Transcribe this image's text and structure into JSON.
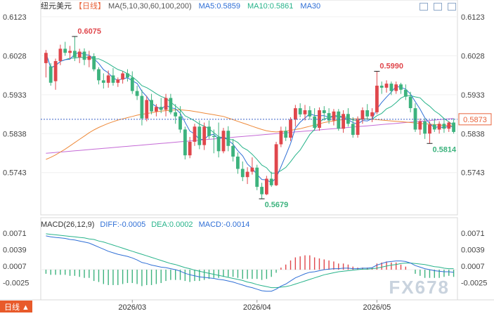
{
  "header": {
    "pair": "纽元美元",
    "period": "【日线】",
    "ma_label": "MA(5,10,30,60,100,200)",
    "ma5": "MA5:0.5859",
    "ma10": "MA10:0.5861",
    "ma30": "MA30"
  },
  "macd_header": {
    "title": "MACD(26,12,9)",
    "diff": "DIFF:-0.0005",
    "dea": "DEA:0.0002",
    "macd": "MACD:-0.0014"
  },
  "watermark": "FX678",
  "badge": "日线",
  "colors": {
    "up": "#e0474c",
    "down": "#3db37e",
    "ma5": "#2f6fd6",
    "ma10": "#27b38a",
    "ma30": "#ee8a3a",
    "ma60": "#c56ad6",
    "diff": "#2f6fd6",
    "dea": "#27b38a"
  },
  "chart_data": [
    {
      "type": "candlestick",
      "title": "纽元美元 日线",
      "y_ticks": [
        "0.6123",
        "0.6028",
        "0.5933",
        "0.5838",
        "0.5743"
      ],
      "ylim": [
        0.565,
        0.614
      ],
      "x_ticks": [
        "2026/03",
        "2026/04",
        "2026/05"
      ],
      "current_price": "0.5873",
      "annotations": [
        {
          "label": "0.6075",
          "value": 0.6075,
          "kind": "high"
        },
        {
          "label": "0.5990",
          "value": 0.599,
          "kind": "high"
        },
        {
          "label": "0.5679",
          "value": 0.5679,
          "kind": "low"
        },
        {
          "label": "0.5814",
          "value": 0.5814,
          "kind": "low"
        }
      ],
      "candles": [
        {
          "o": 0.601,
          "h": 0.6042,
          "l": 0.5975,
          "c": 0.6035
        },
        {
          "o": 0.6002,
          "h": 0.601,
          "l": 0.5955,
          "c": 0.5962
        },
        {
          "o": 0.5966,
          "h": 0.6021,
          "l": 0.5945,
          "c": 0.6015
        },
        {
          "o": 0.6015,
          "h": 0.6055,
          "l": 0.6005,
          "c": 0.6045
        },
        {
          "o": 0.6045,
          "h": 0.6062,
          "l": 0.6028,
          "c": 0.6035
        },
        {
          "o": 0.6035,
          "h": 0.6052,
          "l": 0.602,
          "c": 0.604
        },
        {
          "o": 0.604,
          "h": 0.6075,
          "l": 0.6015,
          "c": 0.6024
        },
        {
          "o": 0.6024,
          "h": 0.6045,
          "l": 0.601,
          "c": 0.6038
        },
        {
          "o": 0.6038,
          "h": 0.6046,
          "l": 0.6005,
          "c": 0.6018
        },
        {
          "o": 0.6018,
          "h": 0.604,
          "l": 0.6,
          "c": 0.6027
        },
        {
          "o": 0.6027,
          "h": 0.6034,
          "l": 0.599,
          "c": 0.5995
        },
        {
          "o": 0.5995,
          "h": 0.6,
          "l": 0.5958,
          "c": 0.5968
        },
        {
          "o": 0.5968,
          "h": 0.5985,
          "l": 0.5948,
          "c": 0.5962
        },
        {
          "o": 0.5962,
          "h": 0.5992,
          "l": 0.595,
          "c": 0.598
        },
        {
          "o": 0.598,
          "h": 0.5998,
          "l": 0.5955,
          "c": 0.5962
        },
        {
          "o": 0.5962,
          "h": 0.5975,
          "l": 0.5952,
          "c": 0.597
        },
        {
          "o": 0.597,
          "h": 0.599,
          "l": 0.596,
          "c": 0.5985
        },
        {
          "o": 0.5985,
          "h": 0.5995,
          "l": 0.5965,
          "c": 0.5975
        },
        {
          "o": 0.5975,
          "h": 0.599,
          "l": 0.5935,
          "c": 0.5942
        },
        {
          "o": 0.5942,
          "h": 0.5955,
          "l": 0.592,
          "c": 0.593
        },
        {
          "o": 0.593,
          "h": 0.5945,
          "l": 0.5858,
          "c": 0.5875
        },
        {
          "o": 0.5875,
          "h": 0.593,
          "l": 0.5868,
          "c": 0.592
        },
        {
          "o": 0.592,
          "h": 0.5935,
          "l": 0.5885,
          "c": 0.5892
        },
        {
          "o": 0.5892,
          "h": 0.591,
          "l": 0.588,
          "c": 0.5903
        },
        {
          "o": 0.5903,
          "h": 0.5925,
          "l": 0.5888,
          "c": 0.5896
        },
        {
          "o": 0.5896,
          "h": 0.5935,
          "l": 0.588,
          "c": 0.5925
        },
        {
          "o": 0.5925,
          "h": 0.5935,
          "l": 0.5885,
          "c": 0.589
        },
        {
          "o": 0.589,
          "h": 0.591,
          "l": 0.5862,
          "c": 0.588
        },
        {
          "o": 0.588,
          "h": 0.5905,
          "l": 0.584,
          "c": 0.5848
        },
        {
          "o": 0.5848,
          "h": 0.5855,
          "l": 0.5775,
          "c": 0.5785
        },
        {
          "o": 0.5785,
          "h": 0.583,
          "l": 0.5778,
          "c": 0.5818
        },
        {
          "o": 0.5818,
          "h": 0.5862,
          "l": 0.5808,
          "c": 0.5855
        },
        {
          "o": 0.5855,
          "h": 0.587,
          "l": 0.58,
          "c": 0.581
        },
        {
          "o": 0.581,
          "h": 0.5865,
          "l": 0.5798,
          "c": 0.5855
        },
        {
          "o": 0.5855,
          "h": 0.587,
          "l": 0.5825,
          "c": 0.5832
        },
        {
          "o": 0.5832,
          "h": 0.5848,
          "l": 0.579,
          "c": 0.583
        },
        {
          "o": 0.583,
          "h": 0.5865,
          "l": 0.578,
          "c": 0.5795
        },
        {
          "o": 0.5795,
          "h": 0.5852,
          "l": 0.579,
          "c": 0.5845
        },
        {
          "o": 0.5845,
          "h": 0.5856,
          "l": 0.5795,
          "c": 0.5808
        },
        {
          "o": 0.5808,
          "h": 0.5825,
          "l": 0.577,
          "c": 0.5782
        },
        {
          "o": 0.5782,
          "h": 0.5792,
          "l": 0.574,
          "c": 0.5752
        },
        {
          "o": 0.5752,
          "h": 0.577,
          "l": 0.5722,
          "c": 0.5732
        },
        {
          "o": 0.5732,
          "h": 0.5756,
          "l": 0.5715,
          "c": 0.5745
        },
        {
          "o": 0.5745,
          "h": 0.578,
          "l": 0.5738,
          "c": 0.5755
        },
        {
          "o": 0.5755,
          "h": 0.5762,
          "l": 0.57,
          "c": 0.5708
        },
        {
          "o": 0.5708,
          "h": 0.5718,
          "l": 0.5679,
          "c": 0.569
        },
        {
          "o": 0.569,
          "h": 0.5735,
          "l": 0.5688,
          "c": 0.5728
        },
        {
          "o": 0.5728,
          "h": 0.5745,
          "l": 0.5708,
          "c": 0.5712
        },
        {
          "o": 0.5712,
          "h": 0.5818,
          "l": 0.571,
          "c": 0.5812
        },
        {
          "o": 0.5812,
          "h": 0.5855,
          "l": 0.5805,
          "c": 0.5845
        },
        {
          "o": 0.5845,
          "h": 0.5855,
          "l": 0.582,
          "c": 0.5828
        },
        {
          "o": 0.5828,
          "h": 0.5878,
          "l": 0.582,
          "c": 0.5872
        },
        {
          "o": 0.5872,
          "h": 0.5908,
          "l": 0.5855,
          "c": 0.59
        },
        {
          "o": 0.59,
          "h": 0.5912,
          "l": 0.5878,
          "c": 0.5885
        },
        {
          "o": 0.5885,
          "h": 0.5908,
          "l": 0.587,
          "c": 0.5895
        },
        {
          "o": 0.5895,
          "h": 0.5905,
          "l": 0.5872,
          "c": 0.588
        },
        {
          "o": 0.588,
          "h": 0.59,
          "l": 0.5845,
          "c": 0.5852
        },
        {
          "o": 0.5852,
          "h": 0.5902,
          "l": 0.5845,
          "c": 0.5895
        },
        {
          "o": 0.5895,
          "h": 0.5905,
          "l": 0.587,
          "c": 0.5888
        },
        {
          "o": 0.5888,
          "h": 0.59,
          "l": 0.5862,
          "c": 0.587
        },
        {
          "o": 0.587,
          "h": 0.5898,
          "l": 0.5858,
          "c": 0.5892
        },
        {
          "o": 0.5892,
          "h": 0.5898,
          "l": 0.5845,
          "c": 0.585
        },
        {
          "o": 0.585,
          "h": 0.5895,
          "l": 0.584,
          "c": 0.5886
        },
        {
          "o": 0.5886,
          "h": 0.59,
          "l": 0.5855,
          "c": 0.5862
        },
        {
          "o": 0.5862,
          "h": 0.5878,
          "l": 0.5828,
          "c": 0.5835
        },
        {
          "o": 0.5835,
          "h": 0.588,
          "l": 0.5828,
          "c": 0.5872
        },
        {
          "o": 0.5872,
          "h": 0.5902,
          "l": 0.5862,
          "c": 0.5895
        },
        {
          "o": 0.5895,
          "h": 0.591,
          "l": 0.5872,
          "c": 0.588
        },
        {
          "o": 0.588,
          "h": 0.59,
          "l": 0.5866,
          "c": 0.589
        },
        {
          "o": 0.589,
          "h": 0.599,
          "l": 0.5885,
          "c": 0.5955
        },
        {
          "o": 0.5955,
          "h": 0.5965,
          "l": 0.5935,
          "c": 0.595
        },
        {
          "o": 0.595,
          "h": 0.5968,
          "l": 0.5938,
          "c": 0.596
        },
        {
          "o": 0.596,
          "h": 0.5965,
          "l": 0.5932,
          "c": 0.5942
        },
        {
          "o": 0.5942,
          "h": 0.5965,
          "l": 0.5935,
          "c": 0.5958
        },
        {
          "o": 0.5958,
          "h": 0.5962,
          "l": 0.5935,
          "c": 0.5945
        },
        {
          "o": 0.5945,
          "h": 0.5958,
          "l": 0.592,
          "c": 0.5928
        },
        {
          "o": 0.5928,
          "h": 0.594,
          "l": 0.589,
          "c": 0.59
        },
        {
          "o": 0.59,
          "h": 0.5912,
          "l": 0.5842,
          "c": 0.5848
        },
        {
          "o": 0.5848,
          "h": 0.5875,
          "l": 0.5835,
          "c": 0.5868
        },
        {
          "o": 0.5868,
          "h": 0.5875,
          "l": 0.5825,
          "c": 0.5838
        },
        {
          "o": 0.5838,
          "h": 0.5868,
          "l": 0.5814,
          "c": 0.586
        },
        {
          "o": 0.586,
          "h": 0.5875,
          "l": 0.5842,
          "c": 0.5848
        },
        {
          "o": 0.5848,
          "h": 0.5868,
          "l": 0.5838,
          "c": 0.5862
        },
        {
          "o": 0.5862,
          "h": 0.5872,
          "l": 0.584,
          "c": 0.585
        },
        {
          "o": 0.585,
          "h": 0.5868,
          "l": 0.5842,
          "c": 0.5865
        },
        {
          "o": 0.5865,
          "h": 0.5875,
          "l": 0.5838,
          "c": 0.5842
        }
      ],
      "ma30": [
        0.5775,
        0.578,
        0.5786,
        0.5793,
        0.58,
        0.5808,
        0.5816,
        0.5824,
        0.5832,
        0.584,
        0.5847,
        0.5853,
        0.5858,
        0.5863,
        0.5867,
        0.5871,
        0.5874,
        0.5877,
        0.588,
        0.5883,
        0.5885,
        0.5887,
        0.5889,
        0.5891,
        0.5893,
        0.5894,
        0.5895,
        0.5896,
        0.5896,
        0.5895,
        0.5894,
        0.5892,
        0.589,
        0.5888,
        0.5886,
        0.5884,
        0.5882,
        0.588,
        0.5876,
        0.5872,
        0.5868,
        0.5864,
        0.586,
        0.5856,
        0.5852,
        0.5848,
        0.5845,
        0.5843,
        0.5842,
        0.5843,
        0.5844,
        0.5846,
        0.5848,
        0.585,
        0.5853,
        0.5856,
        0.5859,
        0.5862,
        0.5865,
        0.5867,
        0.5869,
        0.5871,
        0.5872,
        0.5873,
        0.5874,
        0.5874,
        0.5874,
        0.5874,
        0.5873,
        0.5872,
        0.5871,
        0.587,
        0.5869,
        0.5868,
        0.5867,
        0.5866,
        0.5865,
        0.5864,
        0.5863,
        0.5862,
        0.5861,
        0.586,
        0.5859,
        0.5858,
        0.5858,
        0.5857
      ],
      "ma60": [
        0.579,
        0.5791,
        0.5792,
        0.5793,
        0.5794,
        0.5795,
        0.5796,
        0.5797,
        0.5798,
        0.5799,
        0.58,
        0.5801,
        0.5802,
        0.5803,
        0.5804,
        0.5805,
        0.5806,
        0.5807,
        0.5808,
        0.5809,
        0.581,
        0.5811,
        0.5812,
        0.5813,
        0.5814,
        0.5815,
        0.5816,
        0.5817,
        0.5818,
        0.5819,
        0.582,
        0.5821,
        0.5822,
        0.5823,
        0.5824,
        0.5825,
        0.5826,
        0.5827,
        0.5828,
        0.5829,
        0.583,
        0.5831,
        0.5832,
        0.5833,
        0.5834,
        0.5835,
        0.5836,
        0.5837,
        0.5838,
        0.5839,
        0.584,
        0.5841,
        0.5842,
        0.5843,
        0.5844,
        0.5845,
        0.5846,
        0.5847,
        0.5848,
        0.5849,
        0.585,
        0.5851,
        0.5852,
        0.5853,
        0.5854,
        0.5855,
        0.5856,
        0.5857,
        0.5858,
        0.5859,
        0.586,
        0.5861,
        0.5862,
        0.5863,
        0.5864,
        0.5865,
        0.5866,
        0.5867,
        0.5868,
        0.5869,
        0.587,
        0.5871,
        0.5872,
        0.5873,
        0.5874,
        0.5875
      ]
    },
    {
      "type": "macd",
      "title": "MACD(26,12,9)",
      "y_ticks": [
        "0.0071",
        "0.0039",
        "0.0007",
        "-0.0025"
      ],
      "ylim": [
        -0.0052,
        0.0085
      ],
      "diff": [
        0.0066,
        0.0064,
        0.0063,
        0.0062,
        0.0061,
        0.0059,
        0.0058,
        0.0056,
        0.0054,
        0.0052,
        0.0048,
        0.0044,
        0.004,
        0.0036,
        0.0033,
        0.003,
        0.0028,
        0.0026,
        0.0023,
        0.0019,
        0.0014,
        0.0012,
        0.0009,
        0.0007,
        0.0005,
        0.0004,
        0.0002,
        0.0,
        -0.0003,
        -0.0007,
        -0.001,
        -0.0012,
        -0.0014,
        -0.0015,
        -0.0016,
        -0.0017,
        -0.0019,
        -0.002,
        -0.0022,
        -0.0024,
        -0.0027,
        -0.003,
        -0.0033,
        -0.0035,
        -0.0038,
        -0.0041,
        -0.0042,
        -0.0042,
        -0.0038,
        -0.0032,
        -0.0028,
        -0.0022,
        -0.0016,
        -0.0012,
        -0.0008,
        -0.0005,
        -0.0004,
        -0.0002,
        0.0,
        0.0001,
        0.0002,
        0.0002,
        0.0003,
        0.0003,
        0.0002,
        0.0002,
        0.0003,
        0.0003,
        0.0004,
        0.0009,
        0.0012,
        0.0015,
        0.0016,
        0.0017,
        0.0017,
        0.0016,
        0.0013,
        0.0008,
        0.0005,
        0.0002,
        0.0,
        -0.0002,
        -0.0003,
        -0.0004,
        -0.0004,
        -0.0005
      ],
      "dea": [
        0.007,
        0.0069,
        0.0068,
        0.0067,
        0.0066,
        0.0065,
        0.0064,
        0.0063,
        0.0062,
        0.006,
        0.0059,
        0.0056,
        0.0054,
        0.0051,
        0.0048,
        0.0045,
        0.0042,
        0.0039,
        0.0036,
        0.0033,
        0.003,
        0.0027,
        0.0024,
        0.0021,
        0.0018,
        0.0015,
        0.0012,
        0.001,
        0.0007,
        0.0004,
        0.0002,
        -0.0001,
        -0.0003,
        -0.0005,
        -0.0007,
        -0.0009,
        -0.0011,
        -0.0013,
        -0.0015,
        -0.0017,
        -0.0019,
        -0.0021,
        -0.0024,
        -0.0026,
        -0.0029,
        -0.0031,
        -0.0033,
        -0.0035,
        -0.0035,
        -0.0034,
        -0.0033,
        -0.0031,
        -0.0028,
        -0.0025,
        -0.0022,
        -0.0019,
        -0.0016,
        -0.0013,
        -0.001,
        -0.0008,
        -0.0006,
        -0.0004,
        -0.0003,
        -0.0002,
        -0.0001,
        0.0,
        0.0001,
        0.0001,
        0.0002,
        0.0003,
        0.0005,
        0.0007,
        0.0009,
        0.001,
        0.0012,
        0.0013,
        0.0013,
        0.0012,
        0.0011,
        0.001,
        0.0008,
        0.0006,
        0.0005,
        0.0003,
        0.0002,
        0.0002
      ]
    }
  ]
}
